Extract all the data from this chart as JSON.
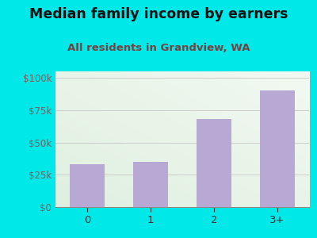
{
  "categories": [
    "0",
    "1",
    "2",
    "3+"
  ],
  "values": [
    33000,
    35000,
    68000,
    90000
  ],
  "bar_color": "#b8a9d4",
  "title": "Median family income by earners",
  "subtitle": "All residents in Grandview, WA",
  "title_fontsize": 12.5,
  "subtitle_fontsize": 9.5,
  "title_color": "#111111",
  "subtitle_color": "#7a4040",
  "outer_bg_color": "#00e8e8",
  "plot_bg_top_left_color": "#dff0df",
  "plot_bg_bottom_right_color": "#f8fdf8",
  "plot_bg_top_right_color": "#f0f8f0",
  "plot_bg_bottom_left_color": "#eaf5ea",
  "tick_color": "#7a6060",
  "xlabel_color": "#333333",
  "ylim": [
    0,
    105000
  ],
  "yticks": [
    0,
    25000,
    50000,
    75000,
    100000
  ],
  "ytick_labels": [
    "$0",
    "$25k",
    "$50k",
    "$75k",
    "$100k"
  ],
  "grid_color": "#cccccc",
  "bar_width": 0.55
}
